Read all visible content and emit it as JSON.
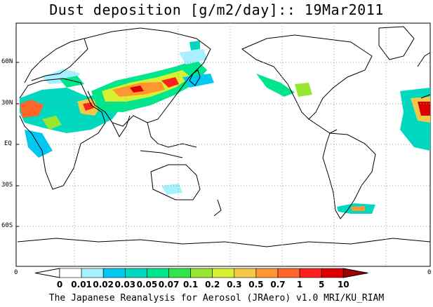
{
  "title": "Dust deposition [g/m2/day]:: 19Mar2011",
  "footer": "The Japanese Reanalysis for Aerosol (JRAero) v1.0 MRI/KU_RIAM",
  "lat_labels": [
    "60N",
    "30N",
    "EQ",
    "30S",
    "60S"
  ],
  "axis_zero_left": "0",
  "axis_zero_right": "0",
  "colorbar": {
    "colors": [
      "#ffffff",
      "#a6f0ff",
      "#00c8f0",
      "#00d9c0",
      "#00e68c",
      "#2ee64a",
      "#96e632",
      "#d7f032",
      "#f5c846",
      "#ff9632",
      "#ff6428",
      "#ff1e1e",
      "#dc0000",
      "#a00000"
    ],
    "labels": [
      "0",
      "0.01",
      "0.02",
      "0.03",
      "0.05",
      "0.07",
      "0.1",
      "0.2",
      "0.3",
      "0.5",
      "0.7",
      "1",
      "5",
      "10"
    ]
  },
  "colors": {
    "map_line": "#000000",
    "grid": "#9a9a9a"
  }
}
